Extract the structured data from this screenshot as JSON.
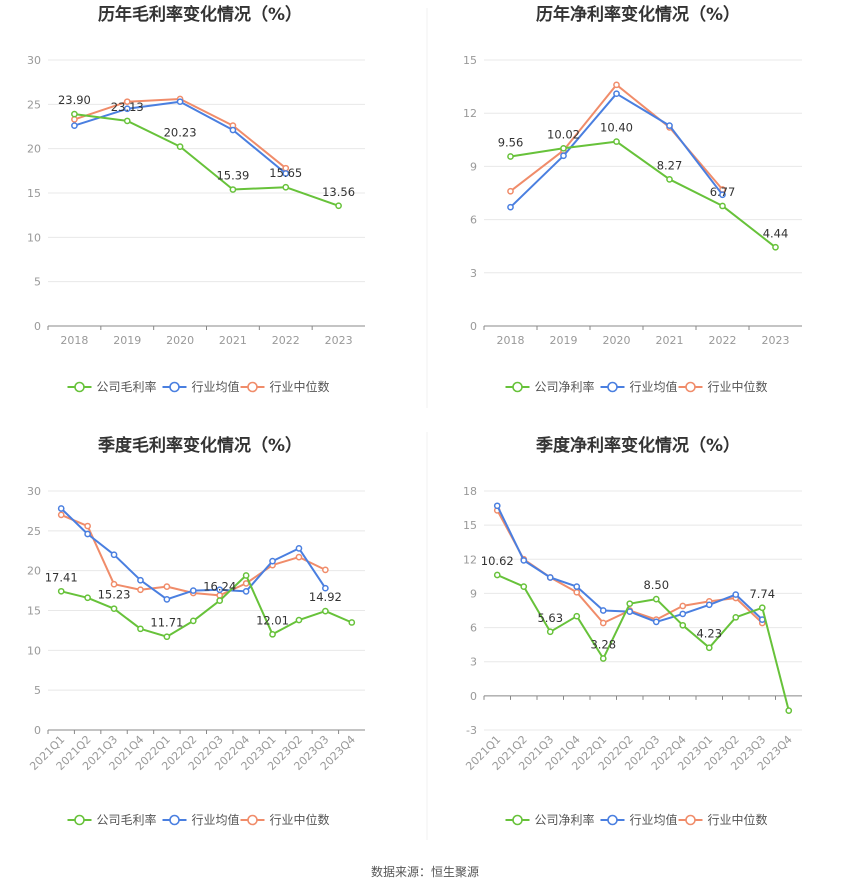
{
  "source_text": "数据来源：恒生聚源",
  "colors": {
    "company": "#67c23a",
    "avg": "#4a7fe0",
    "median": "#f08c6a",
    "grid": "#e8e8e8",
    "axis": "#999999"
  },
  "legend_labels": {
    "avg": "行业均值",
    "median": "行业中位数"
  },
  "chart_data": [
    {
      "type": "line",
      "title": "历年毛利率变化情况（%）",
      "categories": [
        "2018",
        "2019",
        "2020",
        "2021",
        "2022",
        "2023"
      ],
      "ylim": [
        0,
        30
      ],
      "yticks": [
        0,
        5,
        10,
        15,
        20,
        25,
        30
      ],
      "grid": true,
      "legend_position": "bottom",
      "series": [
        {
          "key": "company",
          "name": "公司毛利率",
          "values": [
            23.9,
            23.13,
            20.23,
            15.39,
            15.65,
            13.56
          ]
        },
        {
          "key": "avg",
          "name": "行业均值",
          "values": [
            22.6,
            24.5,
            25.3,
            22.1,
            17.2,
            null
          ]
        },
        {
          "key": "median",
          "name": "行业中位数",
          "values": [
            23.3,
            25.3,
            25.6,
            22.6,
            17.8,
            null
          ]
        }
      ],
      "data_labels": [
        {
          "index": 0,
          "text": "23.90"
        },
        {
          "index": 1,
          "text": "23.13"
        },
        {
          "index": 2,
          "text": "20.23"
        },
        {
          "index": 3,
          "text": "15.39"
        },
        {
          "index": 4,
          "text": "15.65"
        },
        {
          "index": 5,
          "text": "13.56"
        }
      ]
    },
    {
      "type": "line",
      "title": "历年净利率变化情况（%）",
      "categories": [
        "2018",
        "2019",
        "2020",
        "2021",
        "2022",
        "2023"
      ],
      "ylim": [
        0,
        15
      ],
      "yticks": [
        0,
        3,
        6,
        9,
        12,
        15
      ],
      "grid": true,
      "legend_position": "bottom",
      "series": [
        {
          "key": "company",
          "name": "公司净利率",
          "values": [
            9.56,
            10.02,
            10.4,
            8.27,
            6.77,
            4.44
          ]
        },
        {
          "key": "avg",
          "name": "行业均值",
          "values": [
            6.7,
            9.6,
            13.1,
            11.3,
            7.4,
            null
          ]
        },
        {
          "key": "median",
          "name": "行业中位数",
          "values": [
            7.6,
            9.9,
            13.6,
            11.2,
            7.7,
            null
          ]
        }
      ],
      "data_labels": [
        {
          "index": 0,
          "text": "9.56"
        },
        {
          "index": 1,
          "text": "10.02"
        },
        {
          "index": 2,
          "text": "10.40"
        },
        {
          "index": 3,
          "text": "8.27"
        },
        {
          "index": 4,
          "text": "6.77"
        },
        {
          "index": 5,
          "text": "4.44"
        }
      ]
    },
    {
      "type": "line",
      "title": "季度毛利率变化情况（%）",
      "categories": [
        "2021Q1",
        "2021Q2",
        "2021Q3",
        "2021Q4",
        "2022Q1",
        "2022Q2",
        "2022Q3",
        "2022Q4",
        "2023Q1",
        "2023Q2",
        "2023Q3",
        "2023Q4"
      ],
      "ylim": [
        0,
        30
      ],
      "yticks": [
        0,
        5,
        10,
        15,
        20,
        25,
        30
      ],
      "grid": true,
      "legend_position": "bottom",
      "series": [
        {
          "key": "company",
          "name": "公司毛利率",
          "values": [
            17.41,
            16.6,
            15.23,
            12.7,
            11.71,
            13.7,
            16.24,
            19.4,
            12.01,
            13.8,
            14.92,
            13.5
          ]
        },
        {
          "key": "avg",
          "name": "行业均值",
          "values": [
            27.8,
            24.6,
            22.0,
            18.8,
            16.4,
            17.5,
            17.6,
            17.4,
            21.2,
            22.8,
            17.8,
            null
          ]
        },
        {
          "key": "median",
          "name": "行业中位数",
          "values": [
            27.0,
            25.6,
            18.3,
            17.6,
            18.0,
            17.2,
            16.9,
            18.4,
            20.7,
            21.7,
            20.1,
            null
          ]
        }
      ],
      "data_labels": [
        {
          "index": 0,
          "text": "17.41"
        },
        {
          "index": 2,
          "text": "15.23"
        },
        {
          "index": 4,
          "text": "11.71"
        },
        {
          "index": 6,
          "text": "16.24"
        },
        {
          "index": 8,
          "text": "12.01"
        },
        {
          "index": 10,
          "text": "14.92"
        }
      ]
    },
    {
      "type": "line",
      "title": "季度净利率变化情况（%）",
      "categories": [
        "2021Q1",
        "2021Q2",
        "2021Q3",
        "2021Q4",
        "2022Q1",
        "2022Q2",
        "2022Q3",
        "2022Q4",
        "2023Q1",
        "2023Q2",
        "2023Q3",
        "2023Q4"
      ],
      "ylim": [
        -3,
        18
      ],
      "yticks": [
        -3,
        0,
        3,
        6,
        9,
        12,
        15,
        18
      ],
      "grid": true,
      "legend_position": "bottom",
      "series": [
        {
          "key": "company",
          "name": "公司净利率",
          "values": [
            10.62,
            9.6,
            5.63,
            7.0,
            3.28,
            8.1,
            8.5,
            6.2,
            4.23,
            6.9,
            7.74,
            -1.3
          ]
        },
        {
          "key": "avg",
          "name": "行业均值",
          "values": [
            16.7,
            11.9,
            10.4,
            9.6,
            7.5,
            7.4,
            6.5,
            7.2,
            8.0,
            8.9,
            6.7,
            null
          ]
        },
        {
          "key": "median",
          "name": "行业中位数",
          "values": [
            16.3,
            12.0,
            10.4,
            9.1,
            6.4,
            7.5,
            6.7,
            7.9,
            8.3,
            8.6,
            6.4,
            null
          ]
        }
      ],
      "data_labels": [
        {
          "index": 0,
          "text": "10.62"
        },
        {
          "index": 2,
          "text": "5.63"
        },
        {
          "index": 4,
          "text": "3.28"
        },
        {
          "index": 6,
          "text": "8.50"
        },
        {
          "index": 8,
          "text": "4.23"
        },
        {
          "index": 10,
          "text": "7.74"
        }
      ]
    }
  ]
}
